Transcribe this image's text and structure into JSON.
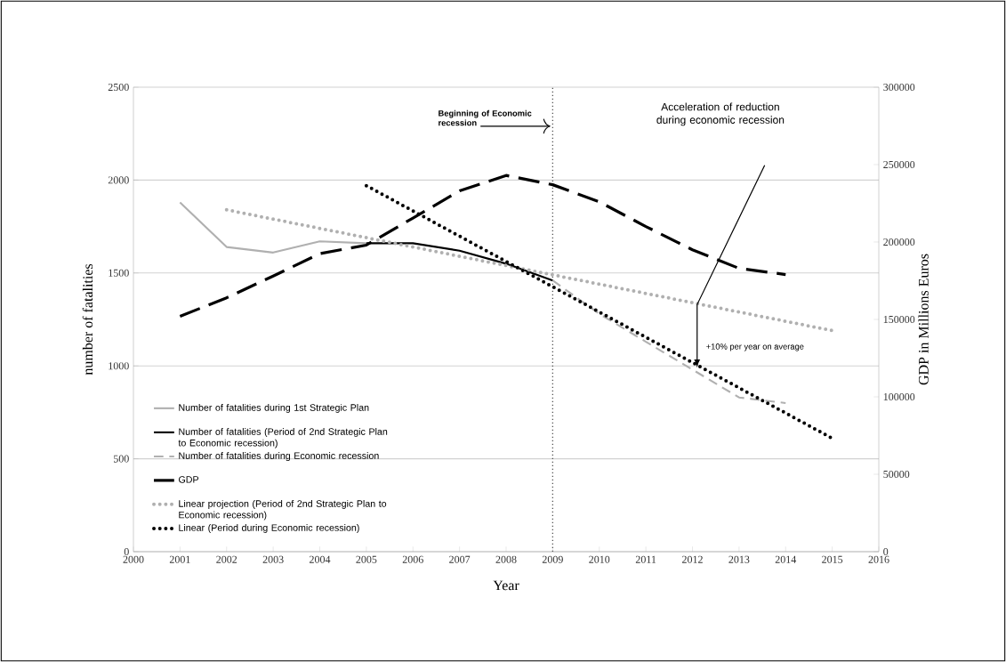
{
  "chart_data": {
    "type": "line",
    "xlabel": "Year",
    "ylabel": "number of fatalities",
    "y2label": "GDP in Millions Euros",
    "xlim": [
      2000,
      2016
    ],
    "xticks": [
      2000,
      2001,
      2002,
      2003,
      2004,
      2005,
      2006,
      2007,
      2008,
      2009,
      2010,
      2011,
      2012,
      2013,
      2014,
      2015,
      2016
    ],
    "ylim": [
      0,
      2500
    ],
    "yticks": [
      0,
      500,
      1000,
      1500,
      2000,
      2500
    ],
    "y2lim": [
      0,
      300000
    ],
    "y2ticks": [
      0,
      50000,
      100000,
      150000,
      200000,
      250000,
      300000
    ],
    "grid": "y",
    "legend": "bottom left",
    "series": [
      {
        "name": "Number of fatalities during 1st Strategic Plan",
        "color": "#b0b0b0",
        "line_style": "solid",
        "x": [
          2001,
          2002,
          2003,
          2004,
          2005
        ],
        "values": [
          1880,
          1640,
          1610,
          1670,
          1660
        ]
      },
      {
        "name": "Number of fatalities (Period of 2nd Strategic Plan to Economic recession)",
        "color": "#000000",
        "line_style": "solid",
        "x": [
          2005,
          2006,
          2007,
          2008,
          2009
        ],
        "values": [
          1660,
          1660,
          1620,
          1550,
          1460
        ]
      },
      {
        "name": "Number of fatalities during Economic recession",
        "color": "#b0b0b0",
        "line_style": "dashed",
        "x": [
          2009,
          2010,
          2011,
          2012,
          2013,
          2014
        ],
        "values": [
          1460,
          1280,
          1130,
          980,
          830,
          800
        ]
      },
      {
        "name": "GDP",
        "color": "#000000",
        "line_style": "dashed",
        "axis": "y2",
        "x": [
          2001,
          2002,
          2003,
          2004,
          2005,
          2006,
          2007,
          2008,
          2009,
          2010,
          2011,
          2012,
          2013,
          2014
        ],
        "values": [
          152000,
          164000,
          178000,
          192500,
          198000,
          215500,
          233000,
          243000,
          237000,
          226000,
          210000,
          195000,
          183000,
          179000
        ]
      },
      {
        "name": "Linear projection (Period of 2nd Strategic Plan to Economic recession)",
        "color": "#b0b0b0",
        "line_style": "dotted",
        "x": [
          2002,
          2015
        ],
        "values": [
          1840,
          1190
        ]
      },
      {
        "name": "Linear (Period during Economic recession)",
        "color": "#000000",
        "line_style": "dotted",
        "x": [
          2005,
          2015
        ],
        "values": [
          1970,
          610
        ]
      }
    ],
    "ref_lines": [
      {
        "axis": "x",
        "value": 2009,
        "color": "#555555",
        "line_style": "dotted"
      }
    ],
    "annotations": [
      {
        "text": "Beginning of Economic recession",
        "x": 2009,
        "y": 2290
      },
      "Acceleration of reduction during economic recession",
      "+10% per year on average"
    ]
  }
}
